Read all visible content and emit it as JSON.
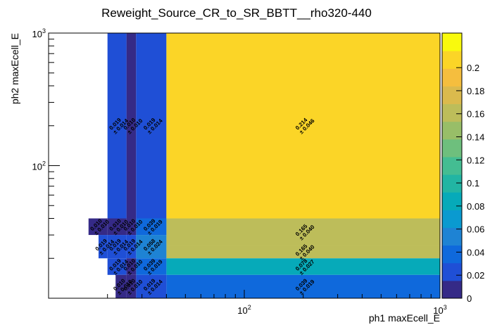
{
  "chart_data": {
    "type": "heatmap",
    "title": "Reweight_Source_CR_to_SR_BBTT__rho320-440",
    "xlabel": "ph1 maxEcell_E",
    "ylabel": "ph2 maxEcell_E",
    "x_scale": "log",
    "y_scale": "log",
    "xlim": [
      10,
      1000
    ],
    "ylim": [
      10,
      1000
    ],
    "x_ticks": [
      {
        "value": 100,
        "base": "10",
        "exp": "2"
      },
      {
        "value": 1000,
        "base": "10",
        "exp": "3"
      }
    ],
    "y_ticks": [
      {
        "value": 100,
        "base": "10",
        "exp": "2"
      },
      {
        "value": 1000,
        "base": "10",
        "exp": "3"
      }
    ],
    "z_range": [
      0,
      0.23
    ],
    "z_ticks": [
      "0",
      "0.02",
      "0.04",
      "0.06",
      "0.08",
      "0.1",
      "0.12",
      "0.14",
      "0.16",
      "0.18",
      "0.2"
    ],
    "cells": [
      {
        "x": [
          25,
          28
        ],
        "y": [
          40,
          1000
        ],
        "z": 0.01,
        "label": "0.010",
        "err": "± 0.010"
      },
      {
        "x": [
          20,
          25
        ],
        "y": [
          40,
          1000
        ],
        "z": 0.019,
        "label": "0.019",
        "err": "± 0.014"
      },
      {
        "x": [
          28,
          40
        ],
        "y": [
          40,
          1000
        ],
        "z": 0.019,
        "label": "0.019",
        "err": "± 0.014"
      },
      {
        "x": [
          40,
          1000
        ],
        "y": [
          40,
          1000
        ],
        "z": 0.214,
        "label": "0.214",
        "err": "± 0.046"
      },
      {
        "x": [
          40,
          1000
        ],
        "y": [
          25,
          40
        ],
        "z": 0.165,
        "label": "0.165",
        "err": "± 0.040"
      },
      {
        "x": [
          40,
          1000
        ],
        "y": [
          20,
          25
        ],
        "z": 0.165,
        "label": "0.165",
        "err": "± 0.040"
      },
      {
        "x": [
          40,
          1000
        ],
        "y": [
          15,
          20
        ],
        "z": 0.078,
        "label": "0.078",
        "err": "± 0.027"
      },
      {
        "x": [
          40,
          1000
        ],
        "y": [
          10,
          15
        ],
        "z": 0.039,
        "label": "0.039",
        "err": "± 0.019"
      },
      {
        "x": [
          28,
          40
        ],
        "y": [
          30,
          40
        ],
        "z": 0.039,
        "label": "0.039",
        "err": "± 0.019"
      },
      {
        "x": [
          28,
          40
        ],
        "y": [
          20,
          30
        ],
        "z": 0.058,
        "label": "0.058",
        "err": "± 0.024"
      },
      {
        "x": [
          28,
          40
        ],
        "y": [
          15,
          20
        ],
        "z": 0.039,
        "label": "0.039",
        "err": "± 0.019"
      },
      {
        "x": [
          28,
          40
        ],
        "y": [
          10,
          15
        ],
        "z": 0.019,
        "label": "0.019",
        "err": "± 0.014"
      },
      {
        "x": [
          16,
          20
        ],
        "y": [
          30,
          40
        ],
        "z": 0.01,
        "label": "0.010",
        "err": "± 0.010"
      },
      {
        "x": [
          25,
          28
        ],
        "y": [
          30,
          40
        ],
        "z": 0.01,
        "label": "0.010",
        "err": "± 0.010"
      },
      {
        "x": [
          20,
          25
        ],
        "y": [
          30,
          40
        ],
        "z": 0.01,
        "label": "0.010",
        "err": "± 0.010"
      },
      {
        "x": [
          18,
          20
        ],
        "y": [
          20,
          30
        ],
        "z": 0.019,
        "label": "0.019",
        "err": "± 0.014"
      },
      {
        "x": [
          20,
          25
        ],
        "y": [
          20,
          30
        ],
        "z": 0.019,
        "label": "0.019",
        "err": "± 0.014"
      },
      {
        "x": [
          25,
          28
        ],
        "y": [
          20,
          30
        ],
        "z": 0.019,
        "label": "0.019",
        "err": "± 0.014"
      },
      {
        "x": [
          20,
          25
        ],
        "y": [
          15,
          20
        ],
        "z": 0.019,
        "label": "0.019",
        "err": "± 0.014"
      },
      {
        "x": [
          25,
          28
        ],
        "y": [
          15,
          20
        ],
        "z": 0.01,
        "label": "0.010",
        "err": "± 0.010"
      },
      {
        "x": [
          25,
          28
        ],
        "y": [
          10,
          15
        ],
        "z": 0.01,
        "label": "0.010",
        "err": "± 0.010"
      },
      {
        "x": [
          22,
          25
        ],
        "y": [
          10,
          15
        ],
        "z": 0.01,
        "label": "0.010",
        "err": "± 0.010"
      }
    ],
    "colormap": [
      "#352a87",
      "#1f4fd6",
      "#0f69dc",
      "#1e83d4",
      "#0a9ad0",
      "#06aab9",
      "#22b5a3",
      "#44bd92",
      "#6ebf7d",
      "#98be68",
      "#bdbd5a",
      "#dbba4d",
      "#f5be3e",
      "#fbd527",
      "#f9fa0d"
    ],
    "grid": false,
    "legend": "none"
  }
}
